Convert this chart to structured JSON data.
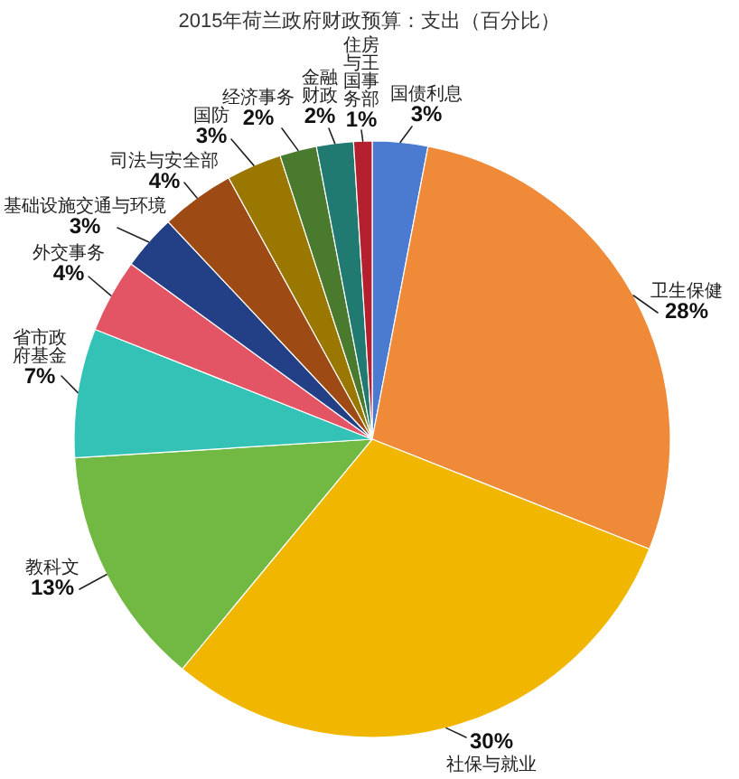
{
  "chart_data": {
    "type": "pie",
    "title": "2015年荷兰政府财政预算：支出（百分比）",
    "categories": [
      "国债利息",
      "卫生保健",
      "社保与就业",
      "教科文",
      "省市政府基金",
      "外交事务",
      "基础设施交通与环境",
      "司法与安全部",
      "国防",
      "经济事务",
      "金融财政",
      "住房与王国事务部"
    ],
    "values": [
      3,
      28,
      30,
      13,
      7,
      4,
      3,
      4,
      3,
      2,
      2,
      1
    ],
    "value_labels": [
      "3%",
      "28%",
      "30%",
      "13%",
      "7%",
      "4%",
      "3%",
      "4%",
      "3%",
      "2%",
      "2%",
      "1%"
    ],
    "colors": [
      "#4a7bd0",
      "#ef8a38",
      "#f1b700",
      "#72b943",
      "#33c2b5",
      "#e35465",
      "#233f85",
      "#9e4a14",
      "#9a7800",
      "#4a7a2e",
      "#207a72",
      "#b5202e"
    ]
  }
}
